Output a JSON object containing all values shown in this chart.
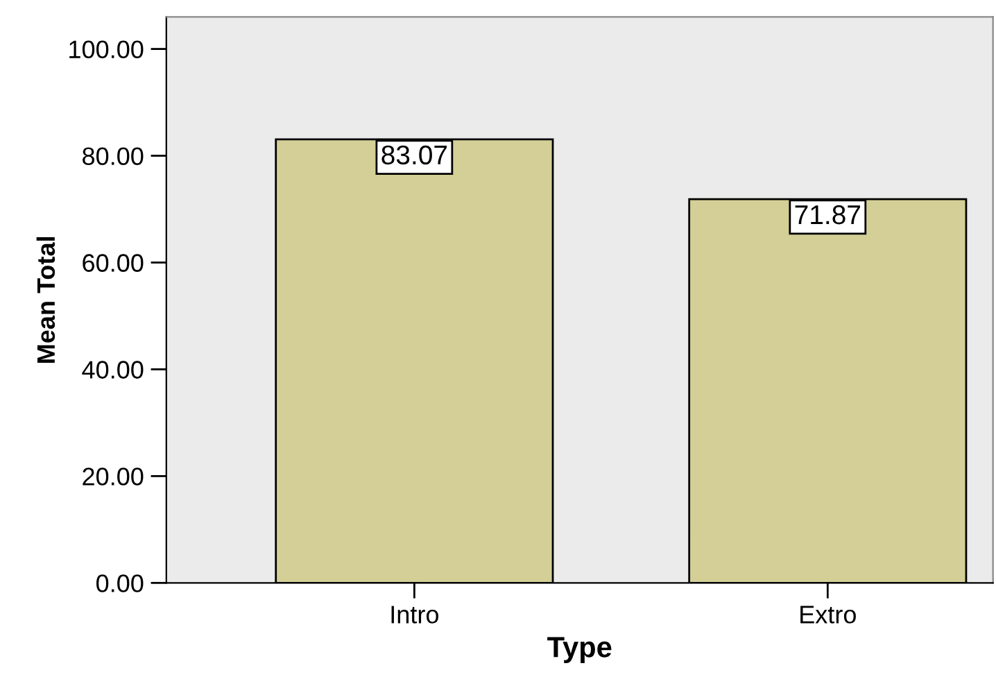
{
  "chart_data": {
    "type": "bar",
    "xlabel": "Type",
    "ylabel": "Mean Total",
    "categories": [
      "Intro",
      "Extro"
    ],
    "values": [
      83.07,
      71.87
    ],
    "color": "#d3cf96",
    "ylim": [
      0,
      106
    ],
    "yticks": [
      {
        "value": 0,
        "label": "0.00"
      },
      {
        "value": 20,
        "label": "20.00"
      },
      {
        "value": 40,
        "label": "40.00"
      },
      {
        "value": 60,
        "label": "60.00"
      },
      {
        "value": 80,
        "label": "80.00"
      },
      {
        "value": 100,
        "label": "100.00"
      }
    ],
    "data_labels": true,
    "grid": false,
    "legend": false
  }
}
